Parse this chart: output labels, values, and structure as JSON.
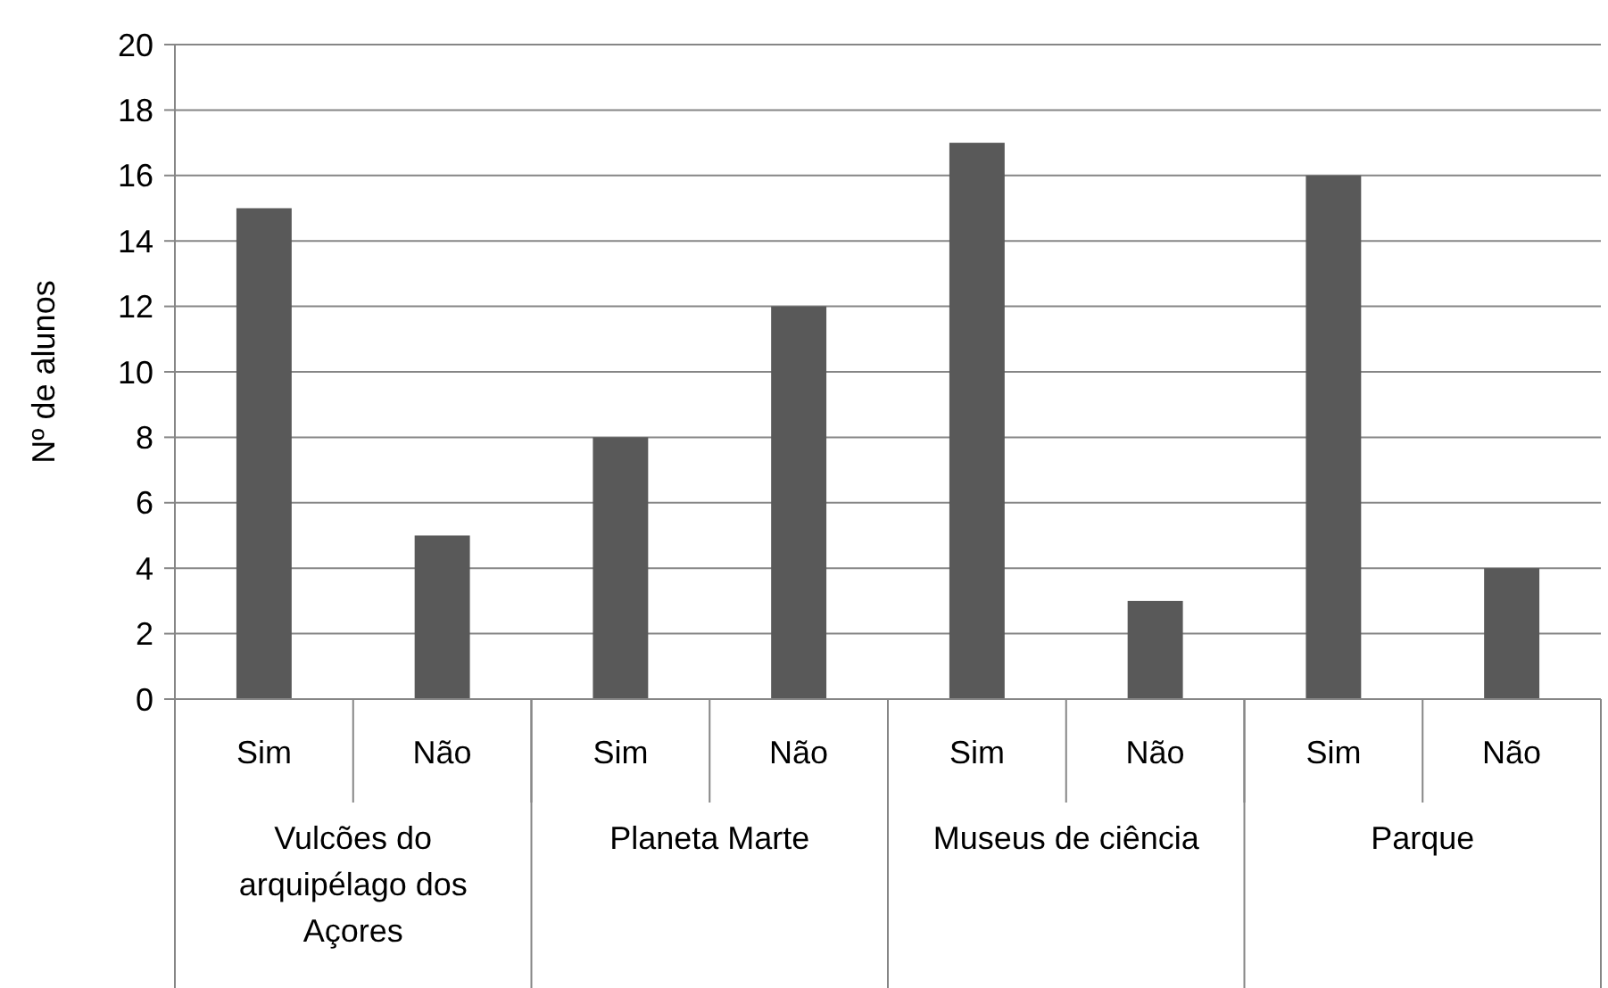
{
  "chart_data": {
    "type": "bar",
    "ylabel": "Nº de alunos",
    "categories": [
      "Sim",
      "Não",
      "Sim",
      "Não",
      "Sim",
      "Não",
      "Sim",
      "Não"
    ],
    "values": [
      15,
      5,
      8,
      12,
      17,
      3,
      16,
      4
    ],
    "color": "#595959",
    "ylim": [
      0,
      20
    ],
    "yticks": [
      0,
      2,
      4,
      6,
      8,
      10,
      12,
      14,
      16,
      18,
      20
    ],
    "grid": "y",
    "annotations": [
      "Vulcões do arquipélago dos Açores",
      "Planeta Marte",
      "Museus de ciência",
      "Parque"
    ]
  }
}
